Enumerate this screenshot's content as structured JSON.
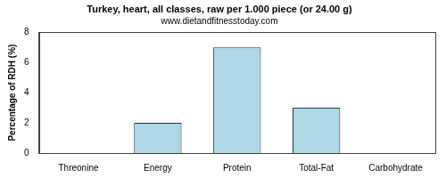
{
  "chart_data": {
    "type": "bar",
    "title": "Turkey, heart, all classes, raw per 1.000 piece (or 24.00 g)",
    "subtitle": "www.dietandfitnesstoday.com",
    "y_label": "Percentage of RDH (%)",
    "categories": [
      "Threonine",
      "Energy",
      "Protein",
      "Total-Fat",
      "Carbohydrate"
    ],
    "values": [
      0,
      2,
      7,
      3,
      0
    ],
    "color": "#add8e6",
    "ylim": [
      0,
      8
    ],
    "yticks": [
      0,
      2,
      4,
      6,
      8
    ],
    "grid": false
  }
}
